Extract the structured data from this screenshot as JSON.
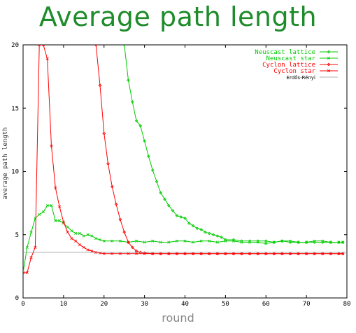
{
  "title": "Average path length",
  "chart_data": {
    "type": "line",
    "title": "Average path length",
    "xlabel": "round",
    "ylabel": "average path length",
    "xlim": [
      0,
      80
    ],
    "ylim": [
      0,
      20
    ],
    "xticks": [
      "0",
      "10",
      "20",
      "30",
      "40",
      "50",
      "60",
      "70",
      "80"
    ],
    "yticks": [
      "0",
      "5",
      "10",
      "15",
      "20"
    ],
    "legend_position": "top-right",
    "colors": {
      "green": "#00cc00",
      "red": "#ff0000",
      "gray": "#999999",
      "title": "#1f8c2c"
    },
    "series": [
      {
        "name": "Neuscast lattice",
        "color": "#00cc00",
        "marker": "diamond",
        "x": [
          25,
          26,
          27,
          28,
          29,
          30,
          31,
          32,
          33,
          34,
          35,
          36,
          37,
          38,
          39,
          40,
          41,
          42,
          43,
          44,
          45,
          46,
          47,
          48,
          49,
          50,
          52,
          54,
          56,
          58,
          60,
          62,
          64,
          66,
          68,
          70,
          72,
          74,
          76,
          78,
          79
        ],
        "y": [
          20,
          17.2,
          15.5,
          14,
          13.6,
          12.4,
          11.2,
          10.1,
          9.2,
          8.3,
          7.8,
          7.3,
          6.9,
          6.5,
          6.4,
          6.3,
          5.9,
          5.7,
          5.5,
          5.4,
          5.2,
          5.1,
          5.0,
          4.9,
          4.8,
          4.6,
          4.6,
          4.5,
          4.5,
          4.5,
          4.5,
          4.4,
          4.5,
          4.4,
          4.4,
          4.4,
          4.4,
          4.4,
          4.4,
          4.4,
          4.4
        ]
      },
      {
        "name": "Neuscast star",
        "color": "#00cc00",
        "marker": "x",
        "x": [
          0,
          1,
          2,
          3,
          4,
          5,
          6,
          7,
          8,
          9,
          10,
          11,
          12,
          13,
          14,
          15,
          16,
          17,
          18,
          19,
          20,
          22,
          24,
          26,
          28,
          30,
          32,
          34,
          36,
          38,
          40,
          42,
          44,
          46,
          48,
          50,
          52,
          54,
          56,
          58,
          60,
          62,
          64,
          66,
          68,
          70,
          72,
          74,
          76,
          78,
          79
        ],
        "y": [
          2.0,
          4.0,
          5.2,
          6.3,
          6.6,
          6.8,
          7.3,
          7.3,
          6.1,
          6.1,
          5.9,
          5.6,
          5.3,
          5.1,
          5.1,
          4.9,
          5.0,
          4.9,
          4.7,
          4.6,
          4.5,
          4.5,
          4.5,
          4.4,
          4.5,
          4.4,
          4.5,
          4.4,
          4.4,
          4.5,
          4.5,
          4.4,
          4.5,
          4.5,
          4.4,
          4.5,
          4.5,
          4.4,
          4.4,
          4.4,
          4.3,
          4.4,
          4.5,
          4.5,
          4.4,
          4.4,
          4.5,
          4.5,
          4.4,
          4.4,
          4.4
        ]
      },
      {
        "name": "Cyclon   lattice",
        "color": "#ff0000",
        "marker": "diamond",
        "x": [
          18,
          19,
          20,
          21,
          22,
          23,
          24,
          25,
          26,
          27,
          28,
          29,
          30,
          32,
          34,
          36,
          38,
          40,
          42,
          44,
          46,
          48,
          50,
          52,
          54,
          56,
          58,
          60,
          62,
          64,
          66,
          68,
          70,
          72,
          74,
          76,
          78,
          79
        ],
        "y": [
          20,
          16.8,
          13.0,
          10.6,
          8.8,
          7.4,
          6.2,
          5.2,
          4.4,
          4.0,
          3.7,
          3.6,
          3.55,
          3.5,
          3.5,
          3.5,
          3.5,
          3.5,
          3.5,
          3.5,
          3.5,
          3.5,
          3.5,
          3.5,
          3.5,
          3.5,
          3.5,
          3.5,
          3.5,
          3.5,
          3.5,
          3.5,
          3.5,
          3.5,
          3.5,
          3.5,
          3.5,
          3.5
        ]
      },
      {
        "name": "Cyclon   star",
        "color": "#ff0000",
        "marker": "x",
        "x": [
          0,
          1,
          2,
          3,
          4,
          5,
          6,
          7,
          8,
          9,
          10,
          11,
          12,
          13,
          14,
          15,
          16,
          17,
          18,
          19,
          20,
          22,
          24,
          26,
          28,
          30,
          32,
          34,
          36,
          38,
          40,
          42,
          44,
          46,
          48,
          50,
          52,
          54,
          56,
          58,
          60,
          62,
          64,
          66,
          68,
          70,
          72,
          74,
          76,
          78,
          79
        ],
        "y": [
          2.0,
          2.0,
          3.2,
          4.0,
          20,
          20,
          18.9,
          12.0,
          8.7,
          7.2,
          6.0,
          5.2,
          4.7,
          4.5,
          4.2,
          4.0,
          3.8,
          3.7,
          3.6,
          3.55,
          3.5,
          3.5,
          3.5,
          3.5,
          3.5,
          3.5,
          3.5,
          3.5,
          3.5,
          3.5,
          3.5,
          3.5,
          3.5,
          3.5,
          3.5,
          3.5,
          3.5,
          3.5,
          3.5,
          3.5,
          3.5,
          3.5,
          3.5,
          3.5,
          3.5,
          3.5,
          3.5,
          3.5,
          3.5,
          3.5,
          3.5
        ]
      },
      {
        "name": "Erdős-Rényi",
        "color": "#999999",
        "marker": "none",
        "x": [
          0,
          80
        ],
        "y": [
          3.6,
          3.6
        ]
      }
    ]
  }
}
